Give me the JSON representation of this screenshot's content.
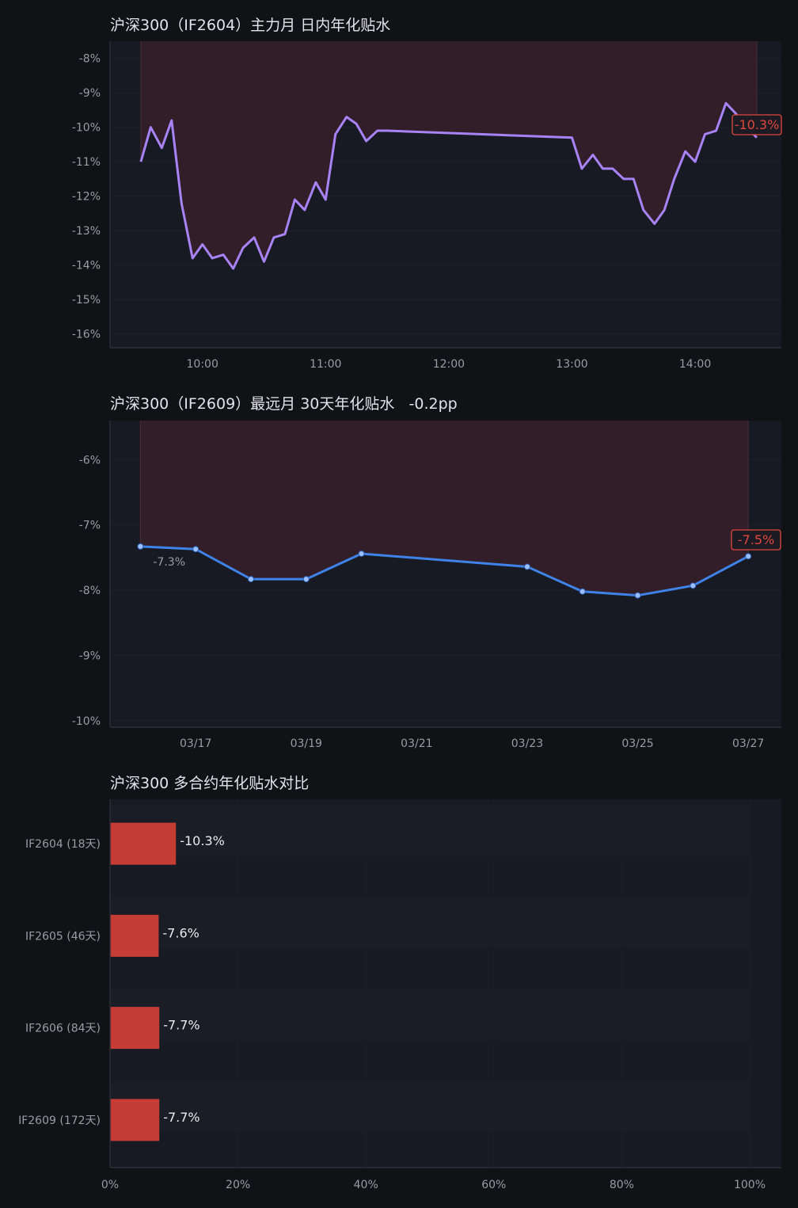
{
  "colors": {
    "background": "#111216",
    "plot_bg": "#181a23",
    "shade": "#341f29",
    "line1": "#a783f5",
    "line2": "#3f83e8",
    "bar": "#c53d35",
    "badge": "#e0473d",
    "tick": "#9a9ba6"
  },
  "chart_data": [
    {
      "type": "line",
      "title": "沪深300（IF2604）主力月 日内年化贴水",
      "ylim": [
        -16.4,
        -7.5
      ],
      "yticks": [
        "-8%",
        "-9%",
        "-10%",
        "-11%",
        "-12%",
        "-13%",
        "-14%",
        "-15%",
        "-16%"
      ],
      "ytick_values": [
        -8,
        -9,
        -10,
        -11,
        -12,
        -13,
        -14,
        -15,
        -16
      ],
      "xlim": [
        9.25,
        14.7
      ],
      "xticks": [
        "10:00",
        "11:00",
        "12:00",
        "13:00",
        "14:00"
      ],
      "xtick_values": [
        10,
        11,
        12,
        13,
        14
      ],
      "shade_range": [
        9.5,
        14.5
      ],
      "series": [
        {
          "x": [
            9.5,
            9.58,
            9.67,
            9.75,
            9.83,
            9.92,
            10.0,
            10.08,
            10.17,
            10.25,
            10.33,
            10.42,
            10.5,
            10.58,
            10.67,
            10.75,
            10.83,
            10.92,
            11.0,
            11.08,
            11.17,
            11.25,
            11.33,
            11.42,
            11.5,
            13.0,
            13.08,
            13.17,
            13.25,
            13.33,
            13.42,
            13.5,
            13.58,
            13.67,
            13.75,
            13.83,
            13.92,
            14.0,
            14.08,
            14.17,
            14.25,
            14.33,
            14.42,
            14.5
          ],
          "y": [
            -11.0,
            -10.0,
            -10.6,
            -9.8,
            -12.2,
            -13.8,
            -13.4,
            -13.8,
            -13.7,
            -14.1,
            -13.5,
            -13.2,
            -13.9,
            -13.2,
            -13.1,
            -12.1,
            -12.4,
            -11.6,
            -12.1,
            -10.2,
            -9.7,
            -9.9,
            -10.4,
            -10.1,
            -10.1,
            -10.3,
            -11.2,
            -10.8,
            -11.2,
            -11.2,
            -11.5,
            -11.5,
            -12.4,
            -12.8,
            -12.4,
            -11.5,
            -10.7,
            -11.0,
            -10.2,
            -10.1,
            -9.3,
            -9.6,
            -10.0,
            -10.3
          ]
        }
      ],
      "last_label": "-10.3%"
    },
    {
      "type": "line",
      "title": "沪深300（IF2609）最远月 30天年化贴水",
      "change": "-0.2pp",
      "ylim": [
        -10.1,
        -5.4
      ],
      "yticks": [
        "-6%",
        "-7%",
        "-8%",
        "-9%",
        "-10%"
      ],
      "ytick_values": [
        -6,
        -7,
        -8,
        -9,
        -10
      ],
      "xlim": [
        -0.55,
        11.6
      ],
      "xticks": [
        "03/17",
        "03/19",
        "03/21",
        "03/23",
        "03/25",
        "03/27"
      ],
      "xtick_values": [
        1,
        3,
        5,
        7,
        9,
        11
      ],
      "shade_range": [
        0,
        11
      ],
      "series": [
        {
          "x": [
            0,
            1,
            2,
            3,
            4,
            7,
            8,
            9,
            10,
            11
          ],
          "y": [
            -7.33,
            -7.37,
            -7.83,
            -7.83,
            -7.44,
            -7.64,
            -8.02,
            -8.08,
            -7.93,
            -7.48
          ]
        }
      ],
      "first_label": "-7.3%",
      "last_label": "-7.5%"
    },
    {
      "type": "bar",
      "title": "沪深300 多合约年化贴水对比",
      "categories": [
        "IF2604 (18天)",
        "IF2605 (46天)",
        "IF2606 (84天)",
        "IF2609 (172天)"
      ],
      "values": [
        10.3,
        7.6,
        7.7,
        7.7
      ],
      "value_labels": [
        "-10.3%",
        "-7.6%",
        "-7.7%",
        "-7.7%"
      ],
      "xlim": [
        0,
        100
      ],
      "xticks": [
        "0%",
        "20%",
        "40%",
        "60%",
        "80%",
        "100%"
      ],
      "xtick_values": [
        0,
        20,
        40,
        60,
        80,
        100
      ]
    }
  ]
}
